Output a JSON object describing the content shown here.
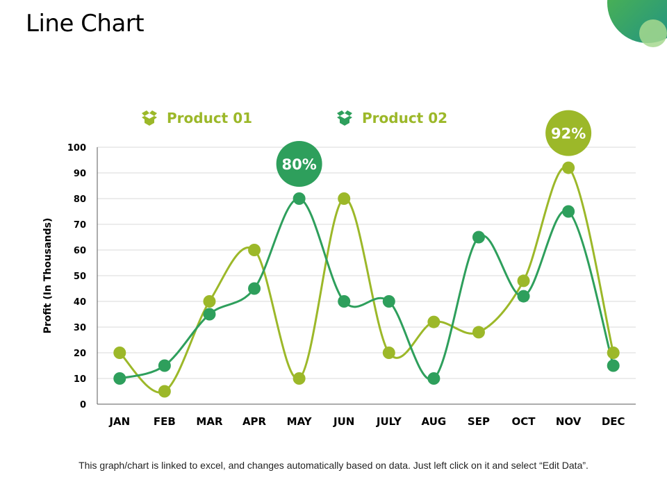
{
  "page": {
    "title": "Line Chart",
    "footer": "This graph/chart is linked to excel, and changes automatically  based on data. Just left click on it and select “Edit Data”."
  },
  "colors": {
    "product01": "#9cb829",
    "product02": "#2e9f5c",
    "grid": "#d9d9d9",
    "axis": "#595959",
    "corner_teal": "#1b8f8a",
    "corner_green": "#55b947"
  },
  "legend": {
    "items": [
      {
        "label": "Product 01",
        "icon": "box-icon",
        "color": "#9cb829"
      },
      {
        "label": "Product 02",
        "icon": "box-icon",
        "color": "#2e9f5c"
      }
    ]
  },
  "chart_data": {
    "type": "line",
    "title": "",
    "xlabel": "",
    "ylabel": "Profit (In Thousands)",
    "ylim": [
      0,
      100
    ],
    "yticks": [
      0,
      10,
      20,
      30,
      40,
      50,
      60,
      70,
      80,
      90,
      100
    ],
    "grid": true,
    "legend_position": "top",
    "categories": [
      "JAN",
      "FEB",
      "MAR",
      "APR",
      "MAY",
      "JUN",
      "JULY",
      "AUG",
      "SEP",
      "OCT",
      "NOV",
      "DEC"
    ],
    "series": [
      {
        "name": "Product 01",
        "color": "#9cb829",
        "values": [
          20,
          5,
          40,
          60,
          10,
          80,
          20,
          32,
          28,
          48,
          92,
          20
        ]
      },
      {
        "name": "Product 02",
        "color": "#2e9f5c",
        "values": [
          10,
          15,
          35,
          45,
          80,
          40,
          40,
          10,
          65,
          42,
          75,
          15
        ]
      }
    ],
    "annotations": [
      {
        "text": "80%",
        "category": "MAY",
        "value": 80,
        "series": "Product 02",
        "color": "#2e9f5c"
      },
      {
        "text": "92%",
        "category": "NOV",
        "value": 92,
        "series": "Product 01",
        "color": "#9cb829"
      }
    ]
  }
}
